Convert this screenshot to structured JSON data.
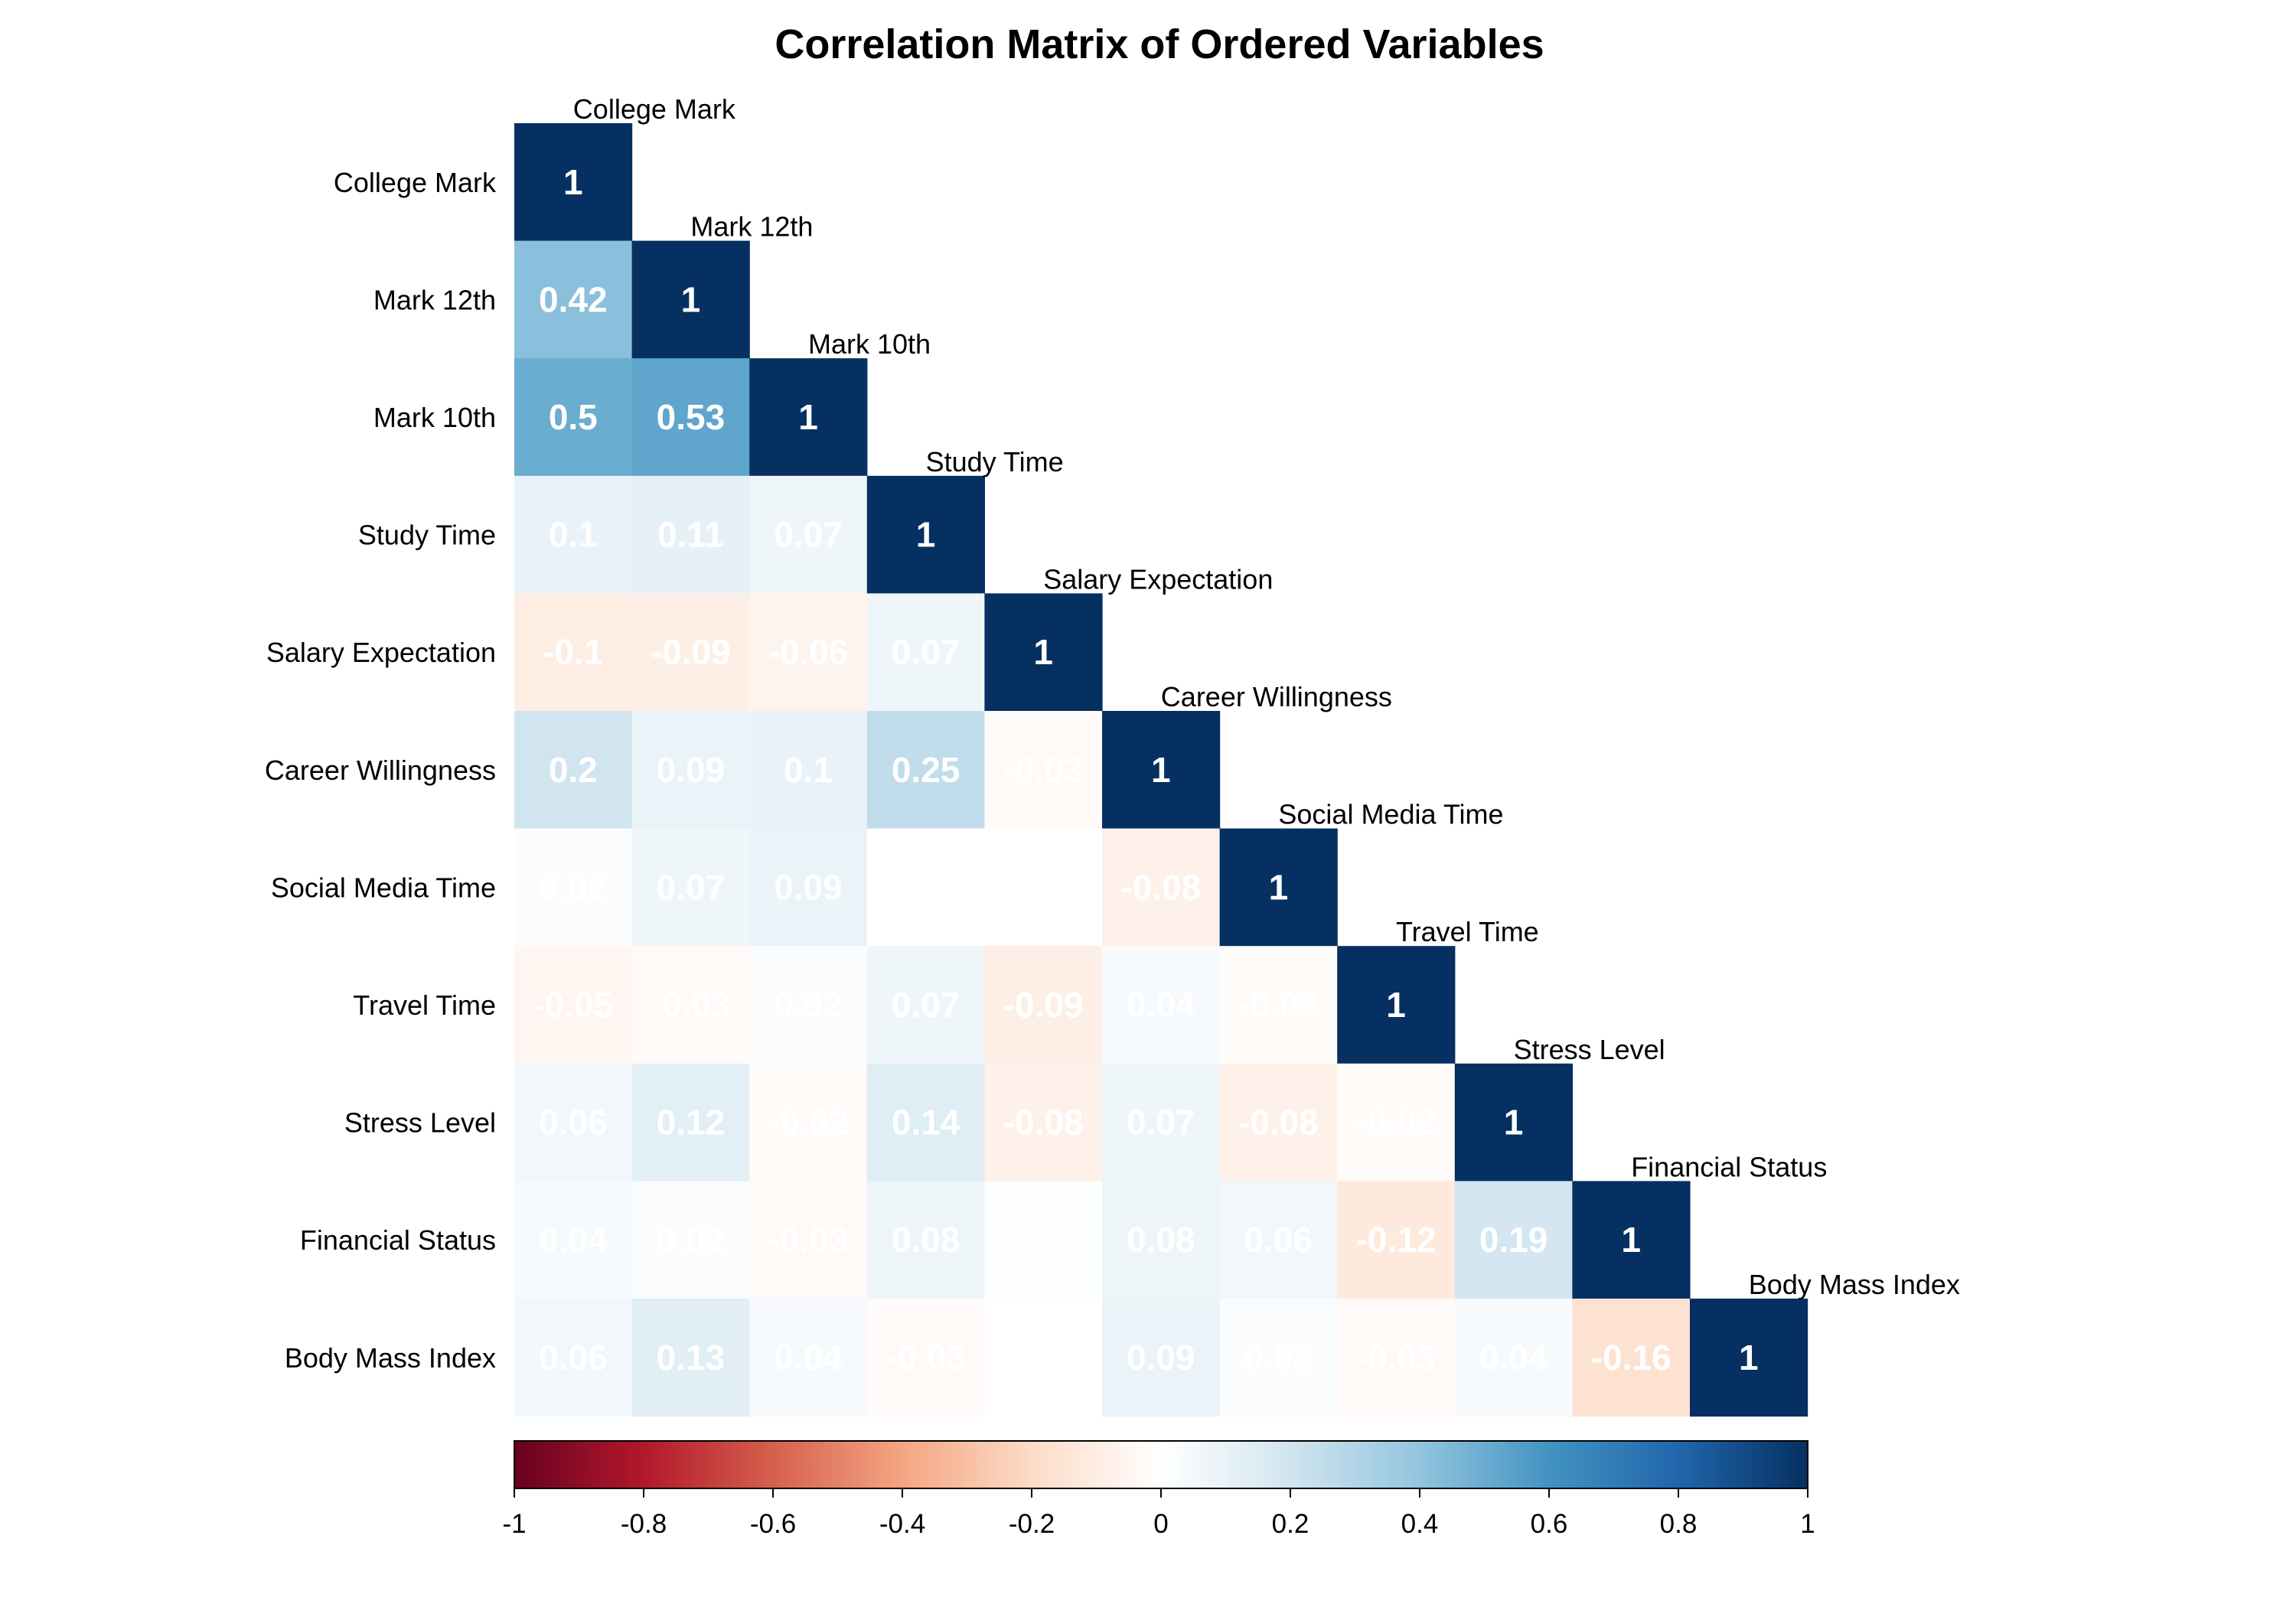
{
  "chart_data": {
    "type": "heatmap",
    "title": "Correlation Matrix of Ordered Variables",
    "variables": [
      "College Mark",
      "Mark 12th",
      "Mark 10th",
      "Study Time",
      "Salary Expectation",
      "Career Willingness",
      "Social Media Time",
      "Travel Time",
      "Stress Level",
      "Financial Status",
      "Body Mass Index"
    ],
    "matrix_shape": "lower-triangle",
    "values": [
      [
        1
      ],
      [
        0.42,
        1
      ],
      [
        0.5,
        0.53,
        1
      ],
      [
        0.1,
        0.11,
        0.07,
        1
      ],
      [
        -0.1,
        -0.09,
        -0.06,
        0.07,
        1
      ],
      [
        0.2,
        0.09,
        0.1,
        0.25,
        -0.03,
        1
      ],
      [
        0.02,
        0.07,
        0.09,
        0,
        0,
        -0.08,
        1
      ],
      [
        -0.05,
        -0.03,
        0.02,
        0.07,
        -0.09,
        0.04,
        -0.02,
        1
      ],
      [
        0.06,
        0.12,
        -0.02,
        0.14,
        -0.08,
        0.07,
        -0.08,
        -0.02,
        1
      ],
      [
        0.04,
        0.02,
        -0.03,
        0.08,
        0.01,
        0.08,
        0.06,
        -0.12,
        0.19,
        1
      ],
      [
        0.06,
        0.13,
        0.04,
        -0.03,
        0,
        0.09,
        0.02,
        -0.03,
        0.04,
        -0.16,
        1
      ]
    ],
    "color_scale": {
      "range": [
        -1,
        1
      ],
      "stops": [
        "#67001f",
        "#b2182b",
        "#d6604d",
        "#f4a582",
        "#fddbc7",
        "#ffffff",
        "#d1e5f0",
        "#92c5de",
        "#4393c3",
        "#2166ac",
        "#053061"
      ],
      "ticks": [
        "-1",
        "-0.8",
        "-0.6",
        "-0.4",
        "-0.2",
        "0",
        "0.2",
        "0.4",
        "0.6",
        "0.8",
        "1"
      ]
    },
    "legend_placement": "bottom",
    "grid": false
  }
}
